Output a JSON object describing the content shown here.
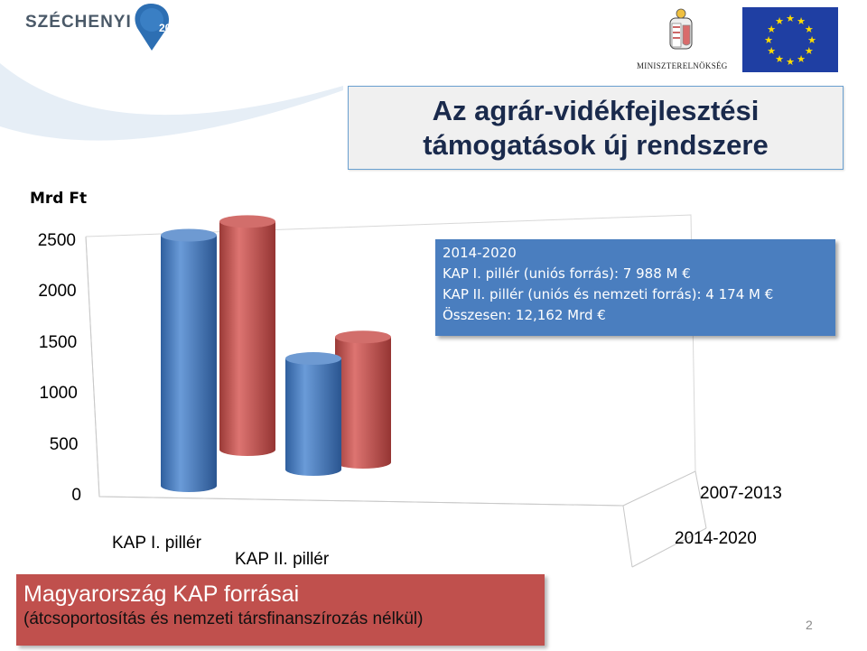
{
  "header": {
    "logo_text": "SZÉCHENYI",
    "logo_year": "2020",
    "ministry_label": "MINISZTERELNÖKSÉG"
  },
  "title": {
    "line1": "Az agrár-vidékfejlesztési",
    "line2": "támogatások új rendszere"
  },
  "chart_data": {
    "type": "bar",
    "style": "3d-cylinder",
    "unit_label": "Mrd Ft",
    "categories": [
      "KAP I. pillér",
      "KAP II. pillér"
    ],
    "series": [
      {
        "name": "2014-2020",
        "color": "#4a7ebf",
        "values": [
          2460,
          1090
        ]
      },
      {
        "name": "2007-2013",
        "color": "#c0504d",
        "values": [
          2240,
          1230
        ]
      }
    ],
    "y_ticks": [
      "0",
      "500",
      "1000",
      "1500",
      "2000",
      "2500"
    ],
    "ylim": [
      0,
      2500
    ],
    "grid": false
  },
  "info": {
    "lines": [
      "2014-2020",
      "KAP I. pillér (uniós forrás): 7 988 M €",
      "KAP II. pillér (uniós és nemzeti forrás): 4 174 M €",
      "Összesen: 12,162 Mrd €"
    ]
  },
  "footer": {
    "title": "Magyarország KAP forrásai",
    "subtitle": "(átcsoportosítás és nemzeti társfinanszírozás nélkül)"
  },
  "page_number": "2",
  "colors": {
    "accent_blue": "#4a7ebf",
    "accent_red": "#c0504d",
    "title_text": "#1a2a4c"
  }
}
